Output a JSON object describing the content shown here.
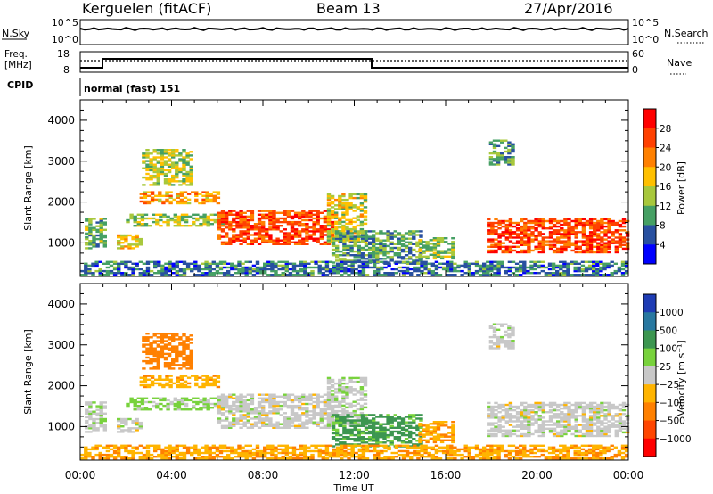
{
  "header": {
    "station": "Kerguelen (fitACF)",
    "beam": "Beam 13",
    "date": "27/Apr/2016"
  },
  "strips": {
    "nsky_label": "N.Sky",
    "nsky_ticks": [
      "10^5",
      "10^0"
    ],
    "nsearch_label": "N.Search",
    "nsearch_ticks": [
      "10^5",
      "10^0"
    ],
    "freq_label_line1": "Freq.",
    "freq_label_line2": "[MHz]",
    "freq_ticks": [
      "18",
      "8"
    ],
    "nave_label": "Nave",
    "nave_ticks": [
      "60",
      "0"
    ],
    "cpid_label": "CPID",
    "cpid_value": "normal (fast) 151"
  },
  "axes": {
    "ylabel": "Slant Range [km]",
    "yticks": [
      "4000",
      "3000",
      "2000",
      "1000"
    ],
    "xticks": [
      "00:00",
      "04:00",
      "08:00",
      "12:00",
      "16:00",
      "20:00",
      "00:00"
    ],
    "xlabel": "Time UT"
  },
  "colorbars": {
    "power": {
      "label": "Power [dB]",
      "ticks": [
        "28",
        "24",
        "20",
        "16",
        "12",
        "8",
        "4"
      ],
      "colors": [
        "#ff0000",
        "#ff4000",
        "#ff8000",
        "#ffc000",
        "#a8c83c",
        "#46a064",
        "#2850a0",
        "#0000ff"
      ]
    },
    "velocity": {
      "label": "Velocity [m s⁻¹]",
      "ticks": [
        "1000",
        "500",
        "100",
        "25",
        "−25",
        "−100",
        "−500",
        "−1000"
      ],
      "colors": [
        "#1e3cb4",
        "#2878a0",
        "#3c9650",
        "#78d23c",
        "#c8c8c8",
        "#ffb400",
        "#ff8000",
        "#ff4600",
        "#ff0000"
      ]
    }
  },
  "chart_data": {
    "type": "heatmap",
    "title": "Kerguelen (fitACF) Beam 13 27/Apr/2016",
    "xlabel": "Time UT",
    "ylabel": "Slant Range [km]",
    "xlim_hours": [
      0,
      24
    ],
    "ylim_km": [
      180,
      4500
    ],
    "regions": [
      {
        "t": [
          0.2,
          1.1
        ],
        "r": [
          850,
          1600
        ],
        "power": 12,
        "vel": 10
      },
      {
        "t": [
          1.6,
          2.7
        ],
        "r": [
          850,
          1200
        ],
        "power": 18,
        "vel": 0
      },
      {
        "t": [
          2.0,
          6.2
        ],
        "r": [
          1400,
          1700
        ],
        "power": 14,
        "vel": 40
      },
      {
        "t": [
          2.6,
          6.0
        ],
        "r": [
          1950,
          2250
        ],
        "power": 20,
        "vel": -80
      },
      {
        "t": [
          2.7,
          4.8
        ],
        "r": [
          2400,
          3300
        ],
        "power": 15,
        "vel": -150
      },
      {
        "t": [
          6.0,
          11.0
        ],
        "r": [
          950,
          1800
        ],
        "power": 26,
        "vel": 0
      },
      {
        "t": [
          10.8,
          12.5
        ],
        "r": [
          1000,
          2200
        ],
        "power": 16,
        "vel": 10
      },
      {
        "t": [
          11.0,
          15.0
        ],
        "r": [
          500,
          1300
        ],
        "power": 10,
        "vel": 120
      },
      {
        "t": [
          14.8,
          16.3
        ],
        "r": [
          600,
          1100
        ],
        "power": 13,
        "vel": -90
      },
      {
        "t": [
          17.8,
          24.0
        ],
        "r": [
          750,
          1600
        ],
        "power": 26,
        "vel": 0
      },
      {
        "t": [
          17.9,
          19.0
        ],
        "r": [
          2900,
          3500
        ],
        "power": 10,
        "vel": 0
      },
      {
        "t": [
          0.0,
          24.0
        ],
        "r": [
          200,
          520
        ],
        "power": 8,
        "vel": -90
      }
    ]
  }
}
